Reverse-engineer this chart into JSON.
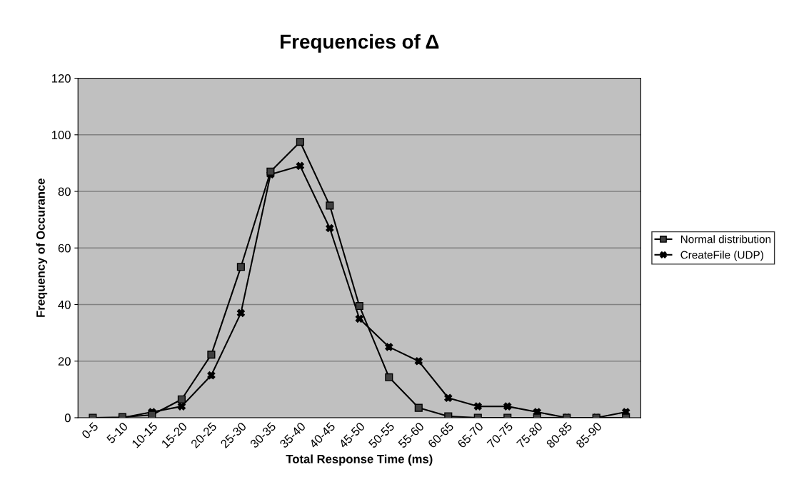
{
  "chart_data": {
    "type": "line",
    "title": "Frequencies of Δ",
    "xlabel": "Total Response Time (ms)",
    "ylabel": "Frequency of Occurance",
    "categories": [
      "0-5",
      "5-10",
      "10-15",
      "15-20",
      "20-25",
      "25-30",
      "30-35",
      "35-40",
      "40-45",
      "45-50",
      "50-55",
      "55-60",
      "60-65",
      "65-70",
      "70-75",
      "75-80",
      "80-85",
      "85-90",
      null
    ],
    "series": [
      {
        "name": "Normal distribution",
        "color": "#000000",
        "marker": "square",
        "values": [
          0,
          0.2,
          1,
          6.5,
          22.3,
          53.3,
          87,
          97.5,
          75,
          39.5,
          14.3,
          3.5,
          0.5,
          0,
          0,
          0,
          0,
          0,
          0
        ]
      },
      {
        "name": "CreateFile (UDP)",
        "color": "#000000",
        "marker": "cross",
        "values": [
          null,
          0,
          2,
          4,
          15,
          37,
          86,
          89,
          67,
          35,
          25,
          20,
          7,
          4,
          4,
          2,
          0,
          0,
          2
        ]
      }
    ],
    "ylim": [
      0,
      120
    ],
    "yticks": [
      0,
      20,
      40,
      60,
      80,
      100,
      120
    ],
    "grid": "y",
    "legend": "right",
    "line_style": "solid"
  }
}
